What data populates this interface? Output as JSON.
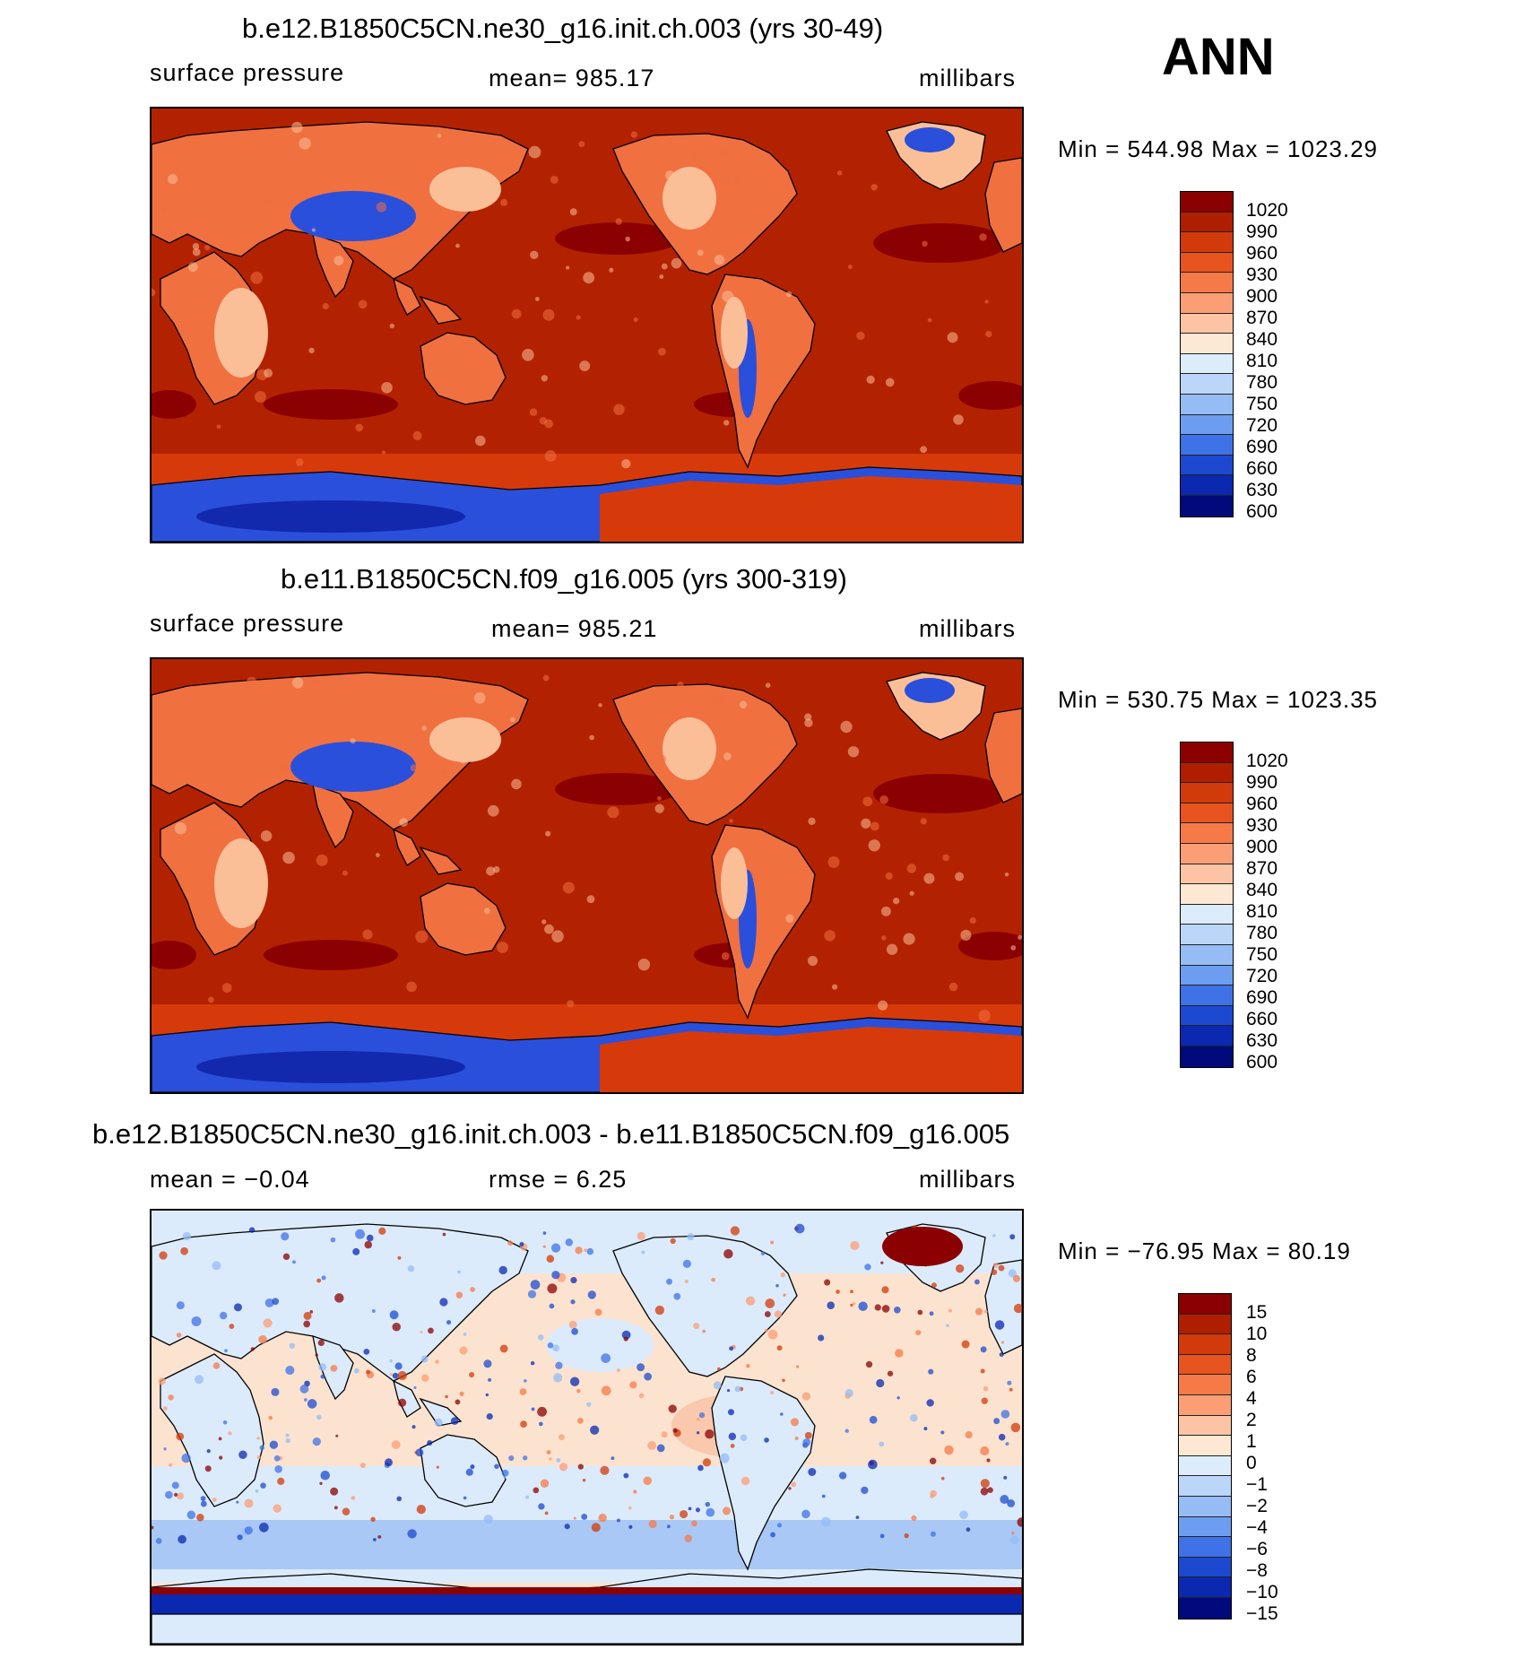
{
  "season_label": "ANN",
  "colors": {
    "ocean_high": "#b32200",
    "land_high": "#d73a0a",
    "land_mid": "#f07040",
    "land_low": "#fbbf98",
    "high_alt": "#dfeefa",
    "very_low": "#2a4fdb",
    "deepest": "#0a1a9a",
    "diff_zero_pos": "#fce3d0",
    "diff_zero_neg": "#dcebfb",
    "diff_neg": "#a9c8f5",
    "diff_pos": "#f8b696",
    "coast": "#000000"
  },
  "panels": [
    {
      "title": "b.e12.B1850C5CN.ne30_g16.init.ch.003 (yrs 30-49)",
      "left_label": "surface pressure",
      "center_label": "mean=  985.17",
      "right_label": "millibars",
      "minmax": "Min  =  544.98  Max  =  1023.29",
      "colorbar": {
        "ticks": [
          "1020",
          "990",
          "960",
          "930",
          "900",
          "870",
          "840",
          "810",
          "780",
          "750",
          "720",
          "690",
          "660",
          "630",
          "600"
        ],
        "colors": [
          "#8b0000",
          "#b01e00",
          "#d13a0a",
          "#e85420",
          "#f57a48",
          "#fb9e76",
          "#fcc4a4",
          "#fde8d4",
          "#dcecfb",
          "#bcd6fa",
          "#96bcf6",
          "#6c9df0",
          "#3f72e6",
          "#1c49d0",
          "#0a28b0",
          "#000a7a"
        ]
      },
      "variant": "base"
    },
    {
      "title": "b.e11.B1850C5CN.f09_g16.005 (yrs 300-319)",
      "left_label": "surface pressure",
      "center_label": "mean=  985.21",
      "right_label": "millibars",
      "minmax": "Min  =  530.75  Max  =  1023.35",
      "colorbar": {
        "ticks": [
          "1020",
          "990",
          "960",
          "930",
          "900",
          "870",
          "840",
          "810",
          "780",
          "750",
          "720",
          "690",
          "660",
          "630",
          "600"
        ],
        "colors": [
          "#8b0000",
          "#b01e00",
          "#d13a0a",
          "#e85420",
          "#f57a48",
          "#fb9e76",
          "#fcc4a4",
          "#fde8d4",
          "#dcecfb",
          "#bcd6fa",
          "#96bcf6",
          "#6c9df0",
          "#3f72e6",
          "#1c49d0",
          "#0a28b0",
          "#000a7a"
        ]
      },
      "variant": "base"
    },
    {
      "title": "b.e12.B1850C5CN.ne30_g16.init.ch.003 - b.e11.B1850C5CN.f09_g16.005",
      "left_label": "mean  =   −0.04",
      "center_label": "rmse  =     6.25",
      "right_label": "millibars",
      "minmax": "Min  =  −76.95  Max  =   80.19",
      "colorbar": {
        "ticks": [
          "15",
          "10",
          "8",
          "6",
          "4",
          "2",
          "1",
          "0",
          "−1",
          "−2",
          "−4",
          "−6",
          "−8",
          "−10",
          "−15"
        ],
        "colors": [
          "#8b0000",
          "#b01e00",
          "#d13a0a",
          "#e85420",
          "#f57a48",
          "#fb9e76",
          "#fcc4a4",
          "#fde8d4",
          "#dcecfb",
          "#bcd6fa",
          "#96bcf6",
          "#6c9df0",
          "#3f72e6",
          "#1c49d0",
          "#0a28b0",
          "#000a7a"
        ]
      },
      "variant": "diff"
    }
  ]
}
